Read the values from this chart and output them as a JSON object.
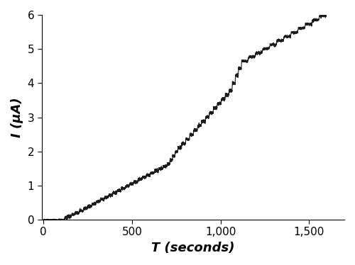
{
  "title": "",
  "xlabel": "T (seconds)",
  "ylabel": "I (μA)",
  "xlim": [
    -10,
    1700
  ],
  "ylim": [
    0,
    6
  ],
  "xticks": [
    0,
    500,
    1000,
    1500
  ],
  "xtick_labels": [
    "0",
    "500",
    "1,000",
    "1,500"
  ],
  "yticks": [
    0,
    1,
    2,
    3,
    4,
    5,
    6
  ],
  "line_color": "#1a1a1a",
  "line_width": 0.8,
  "background_color": "#ffffff",
  "xlabel_fontsize": 13,
  "ylabel_fontsize": 13,
  "tick_fontsize": 11,
  "noise_amplitude": 0.022,
  "seed": 42,
  "segments": [
    {
      "t_start": 0,
      "t_end": 120,
      "i_base": 0.0,
      "step_size": 0.0,
      "n_steps": 0,
      "flat": true
    },
    {
      "t_start": 120,
      "t_end": 180,
      "i_base": 0.05,
      "step_size": 0.05,
      "n_steps": 3,
      "flat": false
    },
    {
      "t_start": 180,
      "t_end": 700,
      "i_base": 0.2,
      "step_size": 0.065,
      "n_steps": 22,
      "flat": false
    },
    {
      "t_start": 700,
      "t_end": 760,
      "i_base": 1.63,
      "step_size": 0.12,
      "n_steps": 4,
      "flat": false
    },
    {
      "t_start": 760,
      "t_end": 1050,
      "i_base": 2.1,
      "step_size": 0.13,
      "n_steps": 13,
      "flat": false
    },
    {
      "t_start": 1050,
      "t_end": 1120,
      "i_base": 3.78,
      "step_size": 0.22,
      "n_steps": 4,
      "flat": false
    },
    {
      "t_start": 1120,
      "t_end": 1680,
      "i_base": 4.65,
      "step_size": 0.12,
      "n_steps": 14,
      "flat": false
    }
  ]
}
